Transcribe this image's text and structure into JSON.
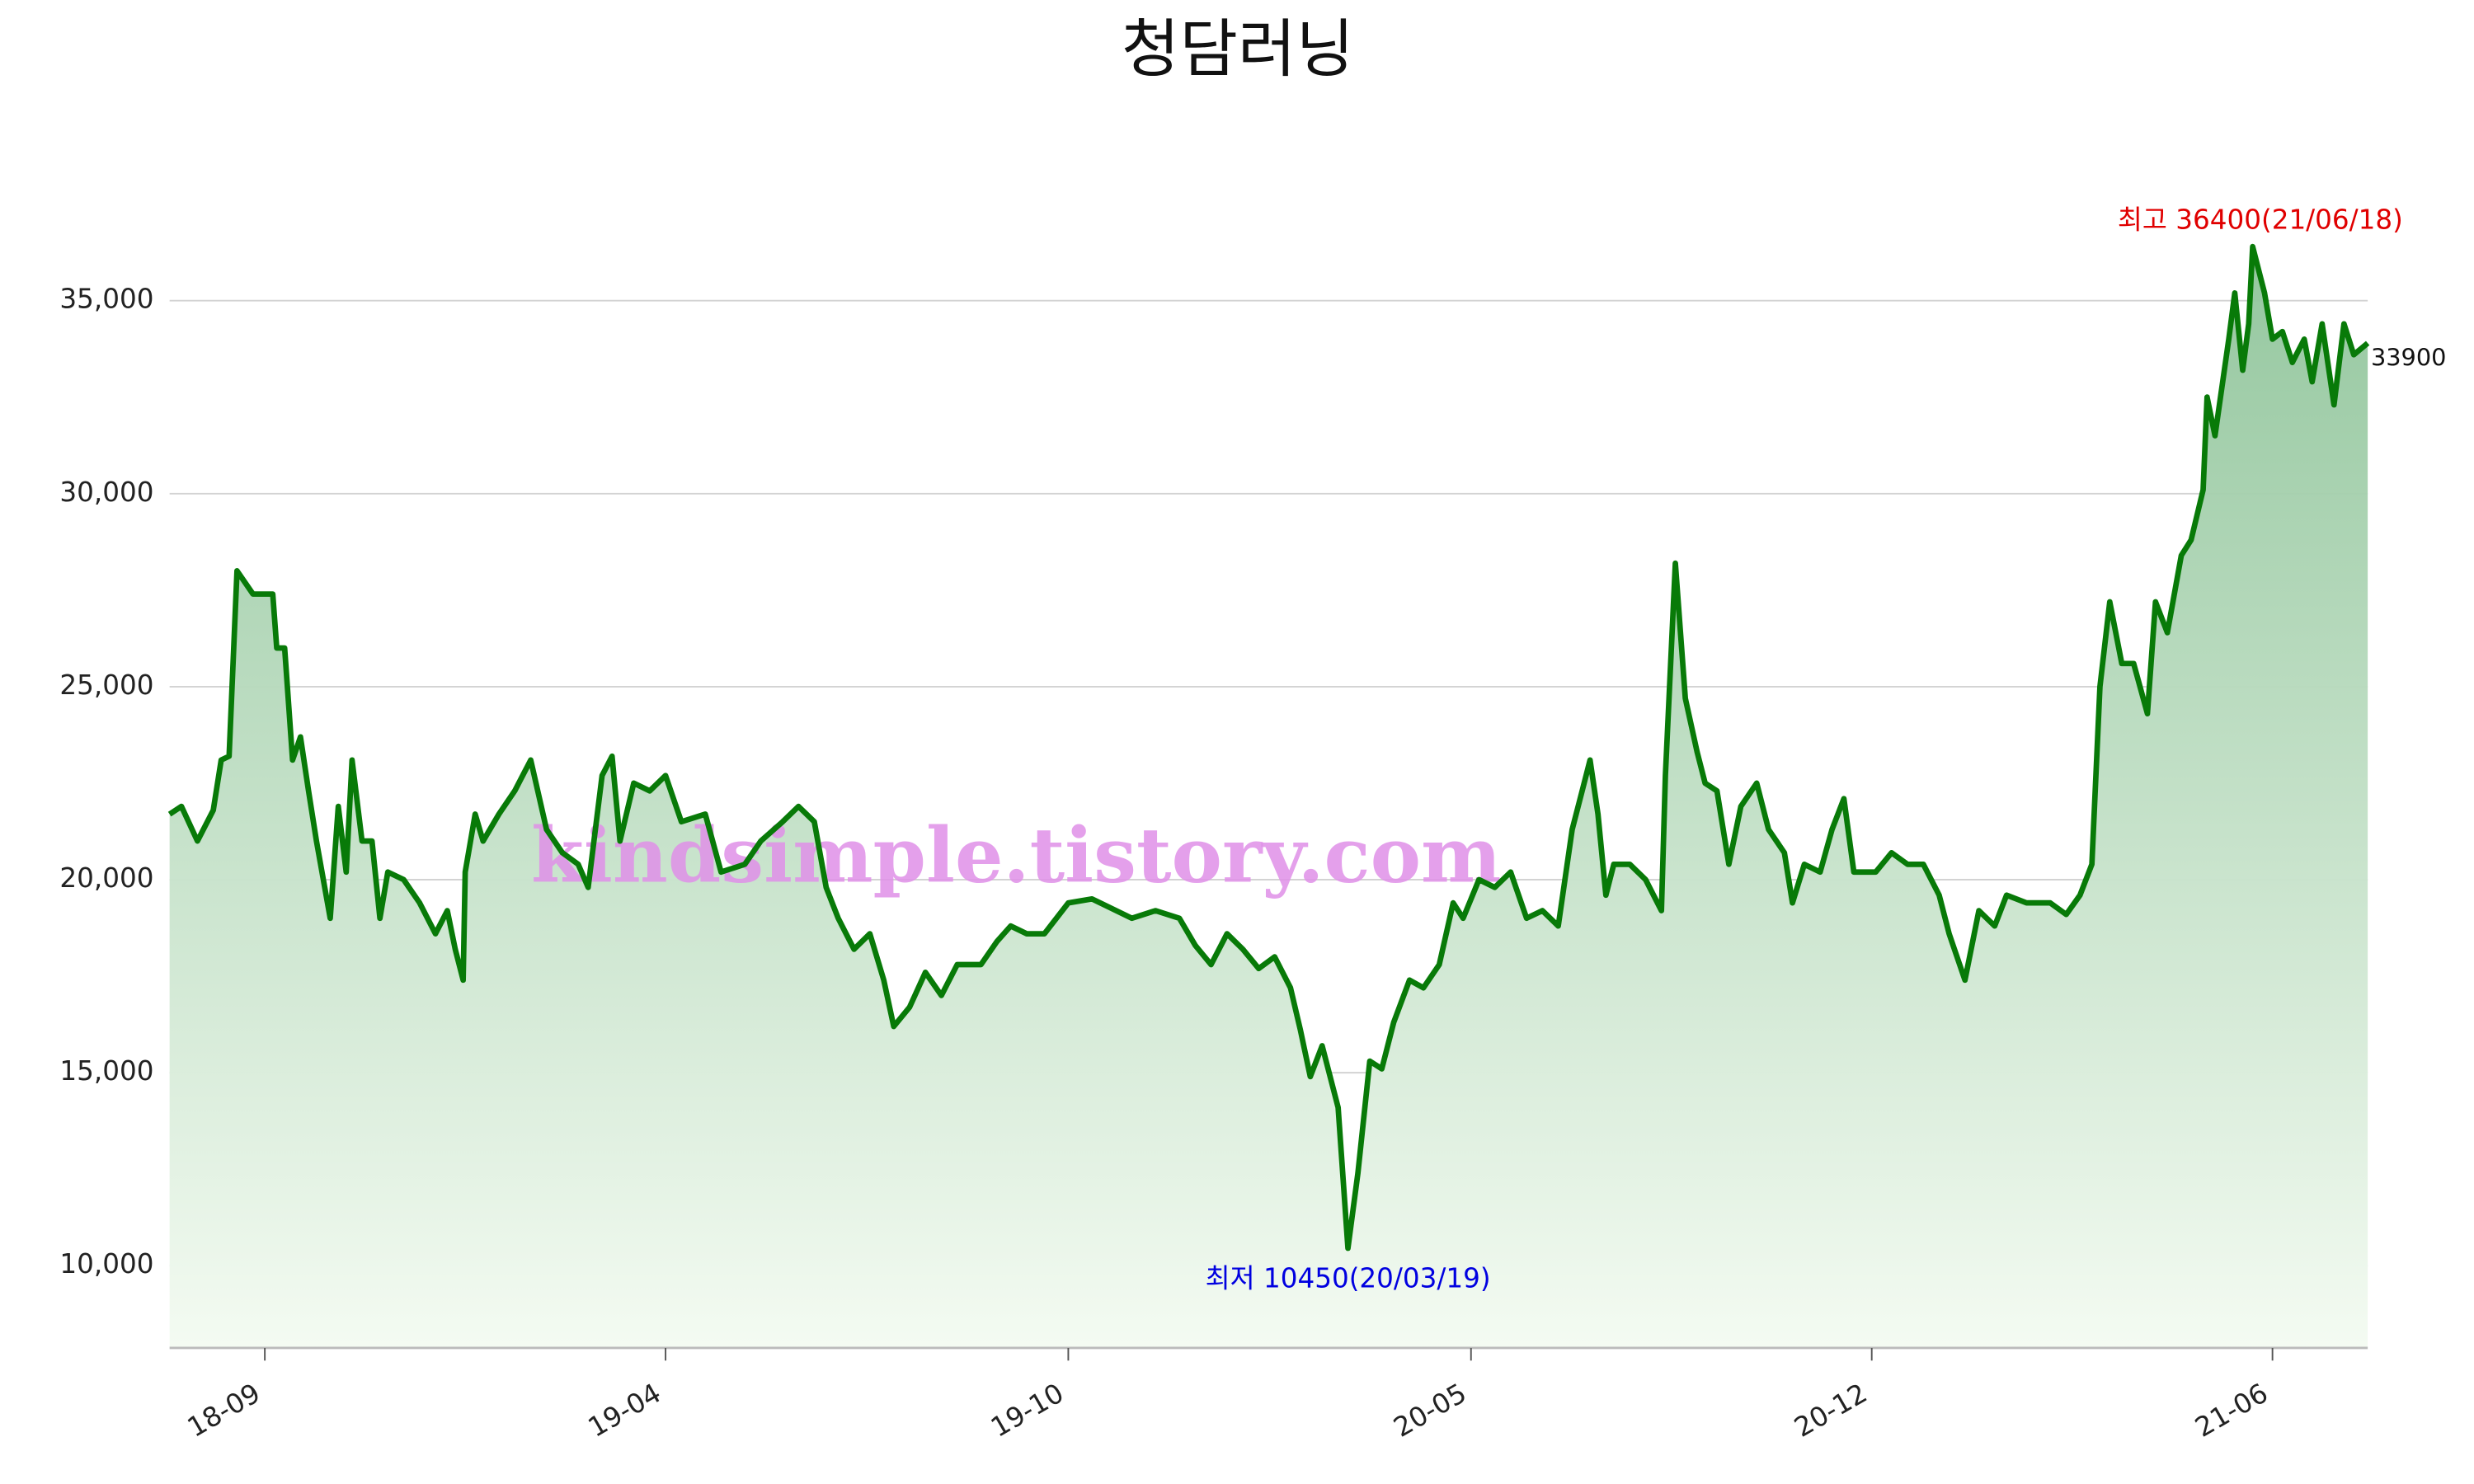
{
  "chart_data": {
    "type": "line",
    "title": "청담러닝",
    "watermark": "kindsimple.tistory.com",
    "annotations": {
      "max": "최고 36400(21/06/18)",
      "min": "최저 10450(20/03/19)",
      "last": "33900"
    },
    "x": [
      "2018-08-03",
      "2018-08-09",
      "2018-08-17",
      "2018-08-25",
      "2018-08-29",
      "2018-09-02",
      "2018-09-06",
      "2018-09-14",
      "2018-09-24",
      "2018-09-26",
      "2018-09-30",
      "2018-10-04",
      "2018-10-08",
      "2018-10-12",
      "2018-10-16",
      "2018-10-23",
      "2018-10-27",
      "2018-10-31",
      "2018-11-03",
      "2018-11-08",
      "2018-11-13",
      "2018-11-17",
      "2018-11-21",
      "2018-11-29",
      "2018-12-07",
      "2018-12-15",
      "2018-12-21",
      "2018-12-25",
      "2018-12-29",
      "2018-12-30",
      "2019-01-04",
      "2019-01-08",
      "2019-01-16",
      "2019-01-24",
      "2019-02-01",
      "2019-02-09",
      "2019-02-17",
      "2019-02-25",
      "2019-03-02",
      "2019-03-09",
      "2019-03-14",
      "2019-03-18",
      "2019-03-25",
      "2019-04-02",
      "2019-04-10",
      "2019-04-18",
      "2019-04-30",
      "2019-05-08",
      "2019-05-20",
      "2019-05-28",
      "2019-06-08",
      "2019-06-16",
      "2019-06-24",
      "2019-06-30",
      "2019-07-06",
      "2019-07-14",
      "2019-07-22",
      "2019-07-29",
      "2019-08-03",
      "2019-08-11",
      "2019-08-19",
      "2019-08-27",
      "2019-09-04",
      "2019-09-16",
      "2019-09-24",
      "2019-10-01",
      "2019-10-09",
      "2019-10-18",
      "2019-10-30",
      "2019-11-11",
      "2019-11-19",
      "2019-12-01",
      "2019-12-13",
      "2019-12-25",
      "2020-01-02",
      "2020-01-10",
      "2020-01-18",
      "2020-01-26",
      "2020-02-03",
      "2020-02-11",
      "2020-02-19",
      "2020-02-24",
      "2020-02-29",
      "2020-03-06",
      "2020-03-14",
      "2020-03-19",
      "2020-03-24",
      "2020-03-30",
      "2020-04-05",
      "2020-04-11",
      "2020-04-19",
      "2020-04-26",
      "2020-05-04",
      "2020-05-11",
      "2020-05-16",
      "2020-05-24",
      "2020-06-01",
      "2020-06-09",
      "2020-06-17",
      "2020-06-25",
      "2020-07-03",
      "2020-07-10",
      "2020-07-15",
      "2020-07-19",
      "2020-07-23",
      "2020-07-27",
      "2020-07-31",
      "2020-08-08",
      "2020-08-16",
      "2020-08-24",
      "2020-08-26",
      "2020-08-31",
      "2020-09-05",
      "2020-09-11",
      "2020-09-15",
      "2020-09-21",
      "2020-09-27",
      "2020-10-03",
      "2020-10-11",
      "2020-10-17",
      "2020-10-25",
      "2020-10-29",
      "2020-11-04",
      "2020-11-12",
      "2020-11-18",
      "2020-11-24",
      "2020-11-29",
      "2020-12-10",
      "2020-12-18",
      "2020-12-26",
      "2021-01-03",
      "2021-01-11",
      "2021-01-16",
      "2021-01-24",
      "2021-01-31",
      "2021-02-08",
      "2021-02-14",
      "2021-02-24",
      "2021-03-08",
      "2021-03-16",
      "2021-03-23",
      "2021-03-29",
      "2021-04-02",
      "2021-04-07",
      "2021-04-13",
      "2021-04-19",
      "2021-04-26",
      "2021-04-30",
      "2021-05-06",
      "2021-05-13",
      "2021-05-18",
      "2021-05-24",
      "2021-05-26",
      "2021-05-30",
      "2021-06-06",
      "2021-06-09",
      "2021-06-13",
      "2021-06-16",
      "2021-06-18",
      "2021-06-24",
      "2021-06-28",
      "2021-07-03",
      "2021-07-08",
      "2021-07-14",
      "2021-07-18",
      "2021-07-23",
      "2021-07-29",
      "2021-08-03",
      "2021-08-08",
      "2021-08-15"
    ],
    "series": [
      {
        "color": "#087a08",
        "fill": "#8fc49a",
        "values": [
          21700,
          21900,
          21000,
          21800,
          23100,
          23200,
          28000,
          27400,
          27400,
          26000,
          26000,
          23100,
          23700,
          22300,
          21000,
          19000,
          21900,
          20200,
          23100,
          21000,
          21000,
          19000,
          20200,
          20000,
          19400,
          18600,
          19200,
          18200,
          17400,
          20200,
          21700,
          21000,
          21700,
          22300,
          23100,
          21300,
          20700,
          20400,
          19800,
          22700,
          23200,
          21000,
          22500,
          22300,
          22700,
          21500,
          21700,
          20200,
          20400,
          21000,
          21500,
          21900,
          21500,
          19800,
          19000,
          18200,
          18600,
          17400,
          16200,
          16700,
          17600,
          17000,
          17800,
          17800,
          18400,
          18800,
          18600,
          18600,
          19400,
          19500,
          19300,
          19000,
          19200,
          19000,
          18300,
          17800,
          18600,
          18200,
          17700,
          18000,
          17200,
          16100,
          14900,
          15700,
          14100,
          10450,
          12400,
          15300,
          15100,
          16300,
          17400,
          17200,
          17800,
          19400,
          19000,
          20000,
          19800,
          20200,
          19000,
          19200,
          18800,
          21300,
          22300,
          23100,
          21700,
          19600,
          20400,
          20400,
          20000,
          19200,
          22700,
          28200,
          24700,
          23300,
          22500,
          22300,
          20400,
          21900,
          22500,
          21300,
          20700,
          19400,
          20400,
          20200,
          21300,
          22100,
          20200,
          20200,
          20700,
          20400,
          20400,
          19600,
          18600,
          17400,
          19200,
          18800,
          19600,
          19400,
          19400,
          19100,
          19600,
          20400,
          25000,
          27200,
          25600,
          25600,
          24300,
          27200,
          26400,
          28400,
          28800,
          30100,
          32500,
          31500,
          34000,
          35200,
          33200,
          34400,
          36400,
          35200,
          34000,
          34200,
          33400,
          34000,
          32900,
          34400,
          32300,
          34400,
          33600,
          33900
        ]
      }
    ],
    "xlim": [
      "2018-08-03",
      "2021-08-15"
    ],
    "xticks": [
      {
        "value": "2018-09-20",
        "label": "18-09"
      },
      {
        "value": "2019-04-10",
        "label": "19-04"
      },
      {
        "value": "2019-10-30",
        "label": "19-10"
      },
      {
        "value": "2020-05-20",
        "label": "20-05"
      },
      {
        "value": "2020-12-08",
        "label": "20-12"
      },
      {
        "value": "2021-06-28",
        "label": "21-06"
      }
    ],
    "ylim": [
      7870,
      38690
    ],
    "yticks": [
      {
        "value": 10000,
        "label": "10,000"
      },
      {
        "value": 15000,
        "label": "15,000"
      },
      {
        "value": 20000,
        "label": "20,000"
      },
      {
        "value": 25000,
        "label": "25,000"
      },
      {
        "value": 30000,
        "label": "30,000"
      },
      {
        "value": 35000,
        "label": "35,000"
      }
    ],
    "grid": true
  }
}
